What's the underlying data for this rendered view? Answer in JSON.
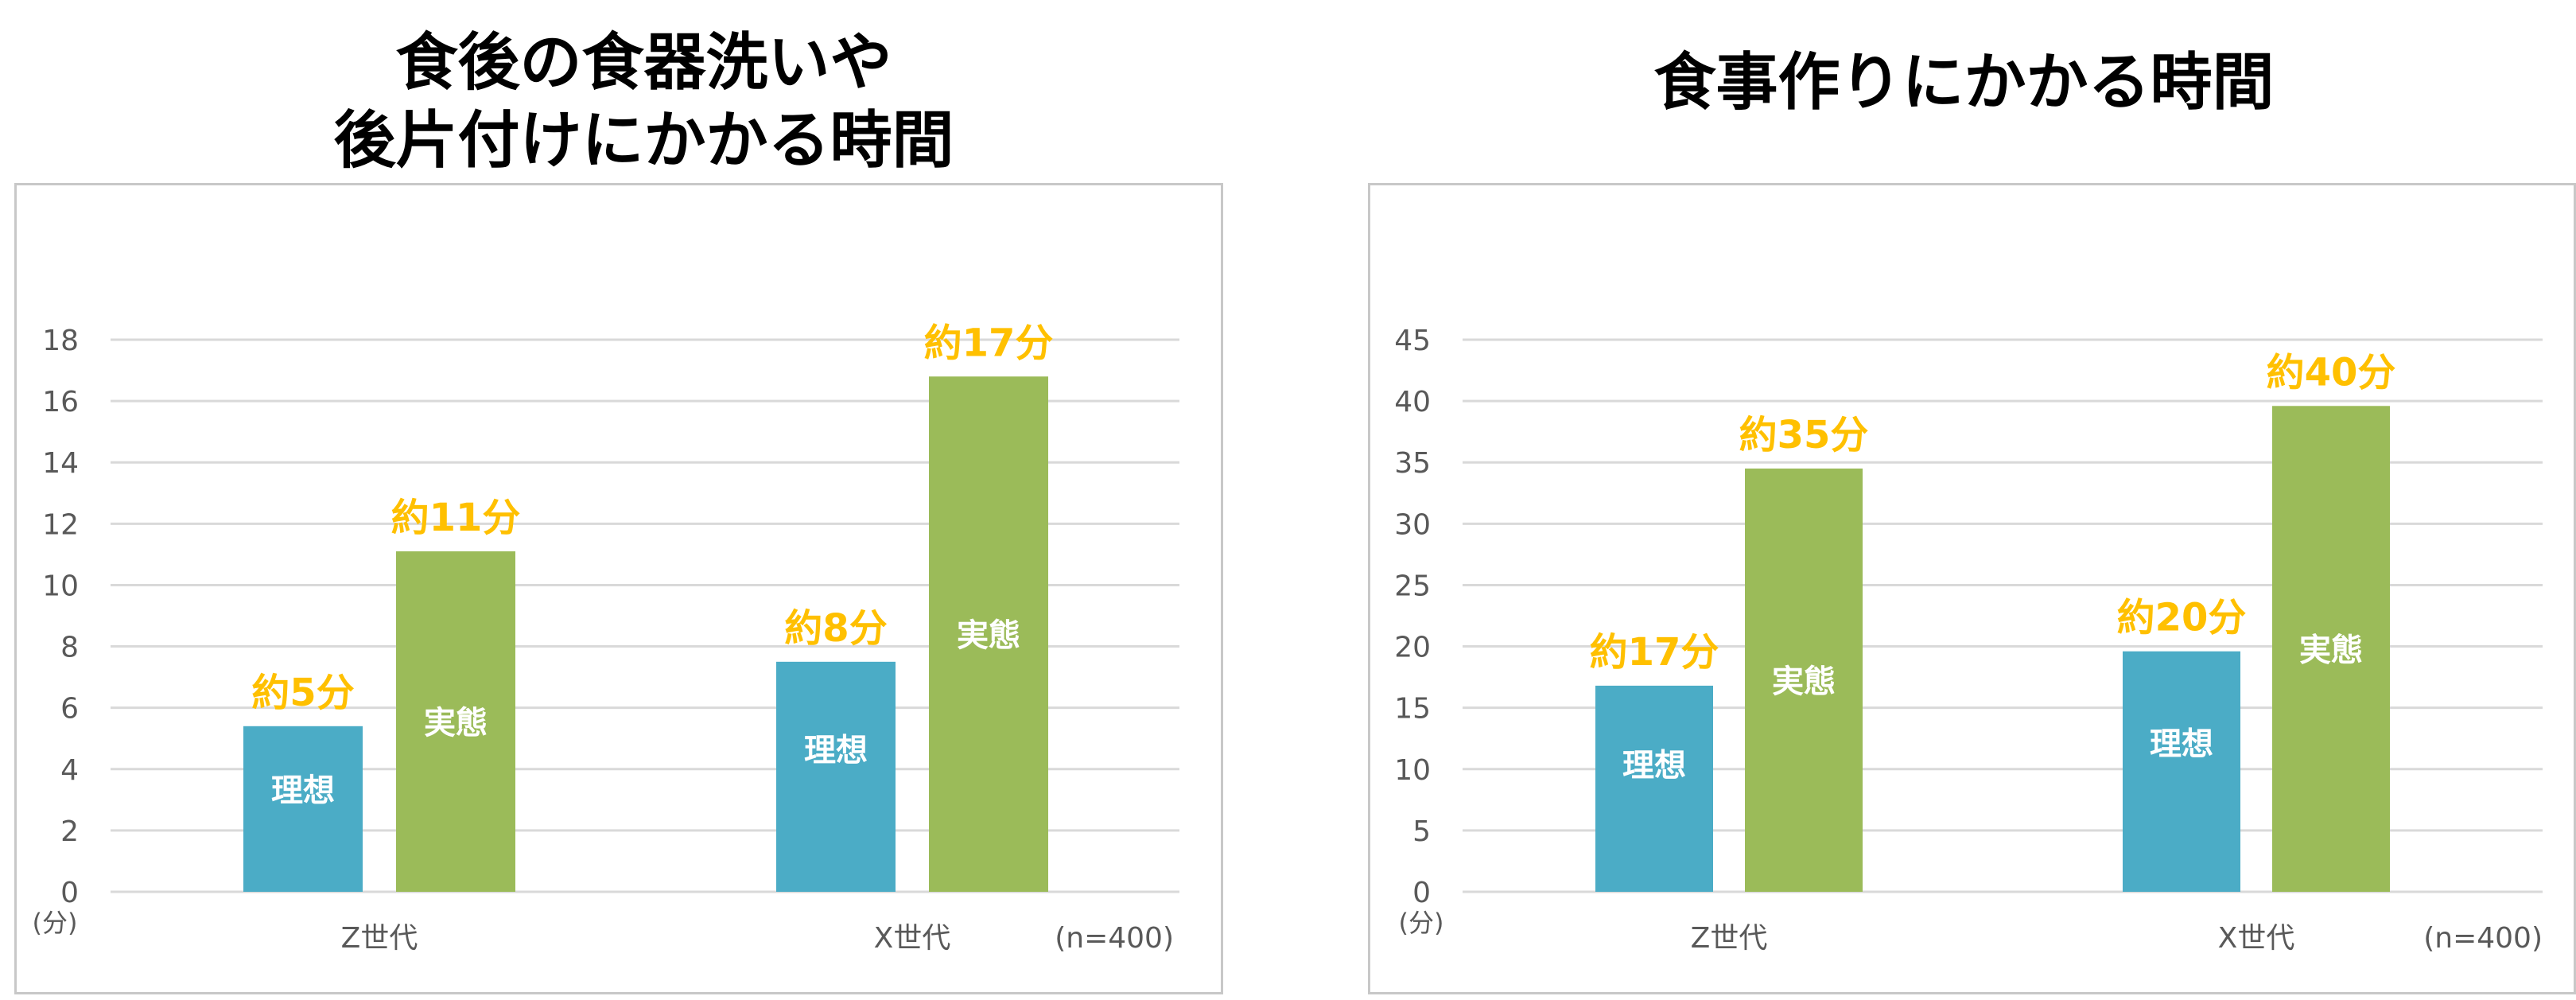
{
  "chart_data": [
    {
      "type": "bar",
      "title": "食後の食器洗いや\n後片付けにかかる時間",
      "categories": [
        "Z世代",
        "X世代"
      ],
      "series": [
        {
          "name": "理想",
          "values": [
            5.4,
            7.5
          ],
          "labels": [
            "約5分",
            "約8分"
          ]
        },
        {
          "name": "実態",
          "values": [
            11.1,
            16.8
          ],
          "labels": [
            "約11分",
            "約17分"
          ]
        }
      ],
      "ylim": [
        0,
        18
      ],
      "yticks": [
        "0",
        "2",
        "4",
        "6",
        "8",
        "10",
        "12",
        "14",
        "16",
        "18"
      ],
      "yunit": "(分)",
      "note": "(n=400)",
      "grid": true,
      "colors": {
        "理想": "#4bacc6",
        "実態": "#9bbb59",
        "value_label": "#ffc000"
      }
    },
    {
      "type": "bar",
      "title": "食事作りにかかる時間",
      "categories": [
        "Z世代",
        "X世代"
      ],
      "series": [
        {
          "name": "理想",
          "values": [
            16.8,
            19.6
          ],
          "labels": [
            "約17分",
            "約20分"
          ]
        },
        {
          "name": "実態",
          "values": [
            34.5,
            39.6
          ],
          "labels": [
            "約35分",
            "約40分"
          ]
        }
      ],
      "ylim": [
        0,
        45
      ],
      "yticks": [
        "0",
        "5",
        "10",
        "15",
        "20",
        "25",
        "30",
        "35",
        "40",
        "45"
      ],
      "yunit": "(分)",
      "note": "(n=400)",
      "grid": true,
      "colors": {
        "理想": "#4bacc6",
        "実態": "#9bbb59",
        "value_label": "#ffc000"
      }
    }
  ]
}
